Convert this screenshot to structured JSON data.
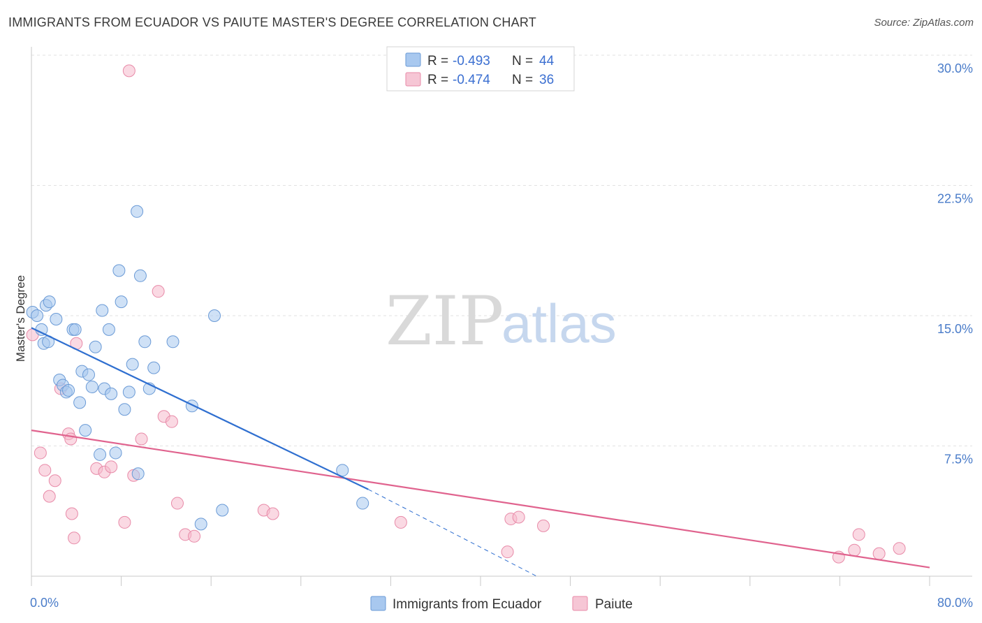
{
  "header": {
    "title": "IMMIGRANTS FROM ECUADOR VS PAIUTE MASTER'S DEGREE CORRELATION CHART",
    "source": "Source: ZipAtlas.com"
  },
  "watermark": {
    "zip": "ZIP",
    "atlas": "atlas"
  },
  "colors": {
    "blue_fill": "#a8c8ef",
    "blue_stroke": "#6a9ad6",
    "blue_line": "#2f6fd0",
    "pink_fill": "#f6b9cc",
    "pink_stroke": "#e88aa8",
    "pink_line": "#e0638e",
    "tick_text": "#4a7cc9",
    "grid": "#e2e2e2"
  },
  "legend": {
    "rows": [
      {
        "r_label": "R =",
        "r_value": "-0.493",
        "n_label": "N =",
        "n_value": "44",
        "color": "blue"
      },
      {
        "r_label": "R =",
        "r_value": "-0.474",
        "n_label": "N =",
        "n_value": "36",
        "color": "pink"
      }
    ]
  },
  "chart_data": {
    "type": "scatter",
    "title": "IMMIGRANTS FROM ECUADOR VS PAIUTE MASTER'S DEGREE CORRELATION CHART",
    "xlabel": "",
    "ylabel": "Master's Degree",
    "xlim": [
      0,
      80
    ],
    "ylim": [
      0,
      30
    ],
    "x_tick_labels": [
      "0.0%",
      "80.0%"
    ],
    "y_ticks": [
      7.5,
      15.0,
      22.5,
      30.0
    ],
    "y_tick_labels": [
      "7.5%",
      "15.0%",
      "22.5%",
      "30.0%"
    ],
    "grid": true,
    "legend_position": "top-center",
    "series": [
      {
        "name": "Immigrants from Ecuador",
        "color": "blue",
        "points": [
          [
            0.1,
            15.2
          ],
          [
            0.5,
            15.0
          ],
          [
            0.9,
            14.2
          ],
          [
            1.1,
            13.4
          ],
          [
            1.3,
            15.6
          ],
          [
            1.5,
            13.5
          ],
          [
            1.6,
            15.8
          ],
          [
            2.2,
            14.8
          ],
          [
            2.5,
            11.3
          ],
          [
            2.8,
            11.0
          ],
          [
            3.1,
            10.6
          ],
          [
            3.3,
            10.7
          ],
          [
            3.7,
            14.2
          ],
          [
            3.9,
            14.2
          ],
          [
            4.3,
            10.0
          ],
          [
            4.5,
            11.8
          ],
          [
            4.8,
            8.4
          ],
          [
            5.1,
            11.6
          ],
          [
            5.4,
            10.9
          ],
          [
            5.7,
            13.2
          ],
          [
            6.1,
            7.0
          ],
          [
            6.3,
            15.3
          ],
          [
            6.5,
            10.8
          ],
          [
            6.9,
            14.2
          ],
          [
            7.1,
            10.5
          ],
          [
            7.5,
            7.1
          ],
          [
            7.8,
            17.6
          ],
          [
            8.0,
            15.8
          ],
          [
            8.3,
            9.6
          ],
          [
            8.7,
            10.6
          ],
          [
            9.0,
            12.2
          ],
          [
            9.4,
            21.0
          ],
          [
            9.5,
            5.9
          ],
          [
            9.7,
            17.3
          ],
          [
            10.1,
            13.5
          ],
          [
            10.5,
            10.8
          ],
          [
            10.9,
            12.0
          ],
          [
            12.6,
            13.5
          ],
          [
            14.3,
            9.8
          ],
          [
            15.1,
            3.0
          ],
          [
            16.3,
            15.0
          ],
          [
            17.0,
            3.8
          ],
          [
            27.7,
            6.1
          ],
          [
            29.5,
            4.2
          ]
        ],
        "trend": {
          "from": [
            0,
            14.3
          ],
          "to": [
            30,
            5.0
          ],
          "dashed_to": [
            45,
            0
          ]
        }
      },
      {
        "name": "Paiute",
        "color": "pink",
        "points": [
          [
            0.1,
            13.9
          ],
          [
            0.8,
            7.1
          ],
          [
            1.2,
            6.1
          ],
          [
            1.6,
            4.6
          ],
          [
            2.1,
            5.5
          ],
          [
            2.6,
            10.8
          ],
          [
            3.3,
            8.2
          ],
          [
            3.5,
            7.9
          ],
          [
            3.6,
            3.6
          ],
          [
            3.8,
            2.2
          ],
          [
            4.0,
            13.4
          ],
          [
            5.8,
            6.2
          ],
          [
            6.5,
            6.0
          ],
          [
            7.1,
            6.3
          ],
          [
            8.3,
            3.1
          ],
          [
            8.7,
            29.1
          ],
          [
            9.1,
            5.8
          ],
          [
            9.8,
            7.9
          ],
          [
            11.3,
            16.4
          ],
          [
            11.8,
            9.2
          ],
          [
            12.5,
            8.9
          ],
          [
            13.0,
            4.2
          ],
          [
            13.7,
            2.4
          ],
          [
            14.5,
            2.3
          ],
          [
            20.7,
            3.8
          ],
          [
            21.5,
            3.6
          ],
          [
            32.9,
            3.1
          ],
          [
            42.4,
            1.4
          ],
          [
            42.7,
            3.3
          ],
          [
            43.4,
            3.4
          ],
          [
            45.6,
            2.9
          ],
          [
            71.9,
            1.1
          ],
          [
            73.3,
            1.5
          ],
          [
            73.7,
            2.4
          ],
          [
            75.5,
            1.3
          ],
          [
            77.3,
            1.6
          ]
        ],
        "trend": {
          "from": [
            0,
            8.4
          ],
          "to": [
            80,
            0.5
          ]
        }
      }
    ]
  },
  "bottom_legend": {
    "items": [
      {
        "label": "Immigrants from Ecuador",
        "color": "blue"
      },
      {
        "label": "Paiute",
        "color": "pink"
      }
    ]
  }
}
